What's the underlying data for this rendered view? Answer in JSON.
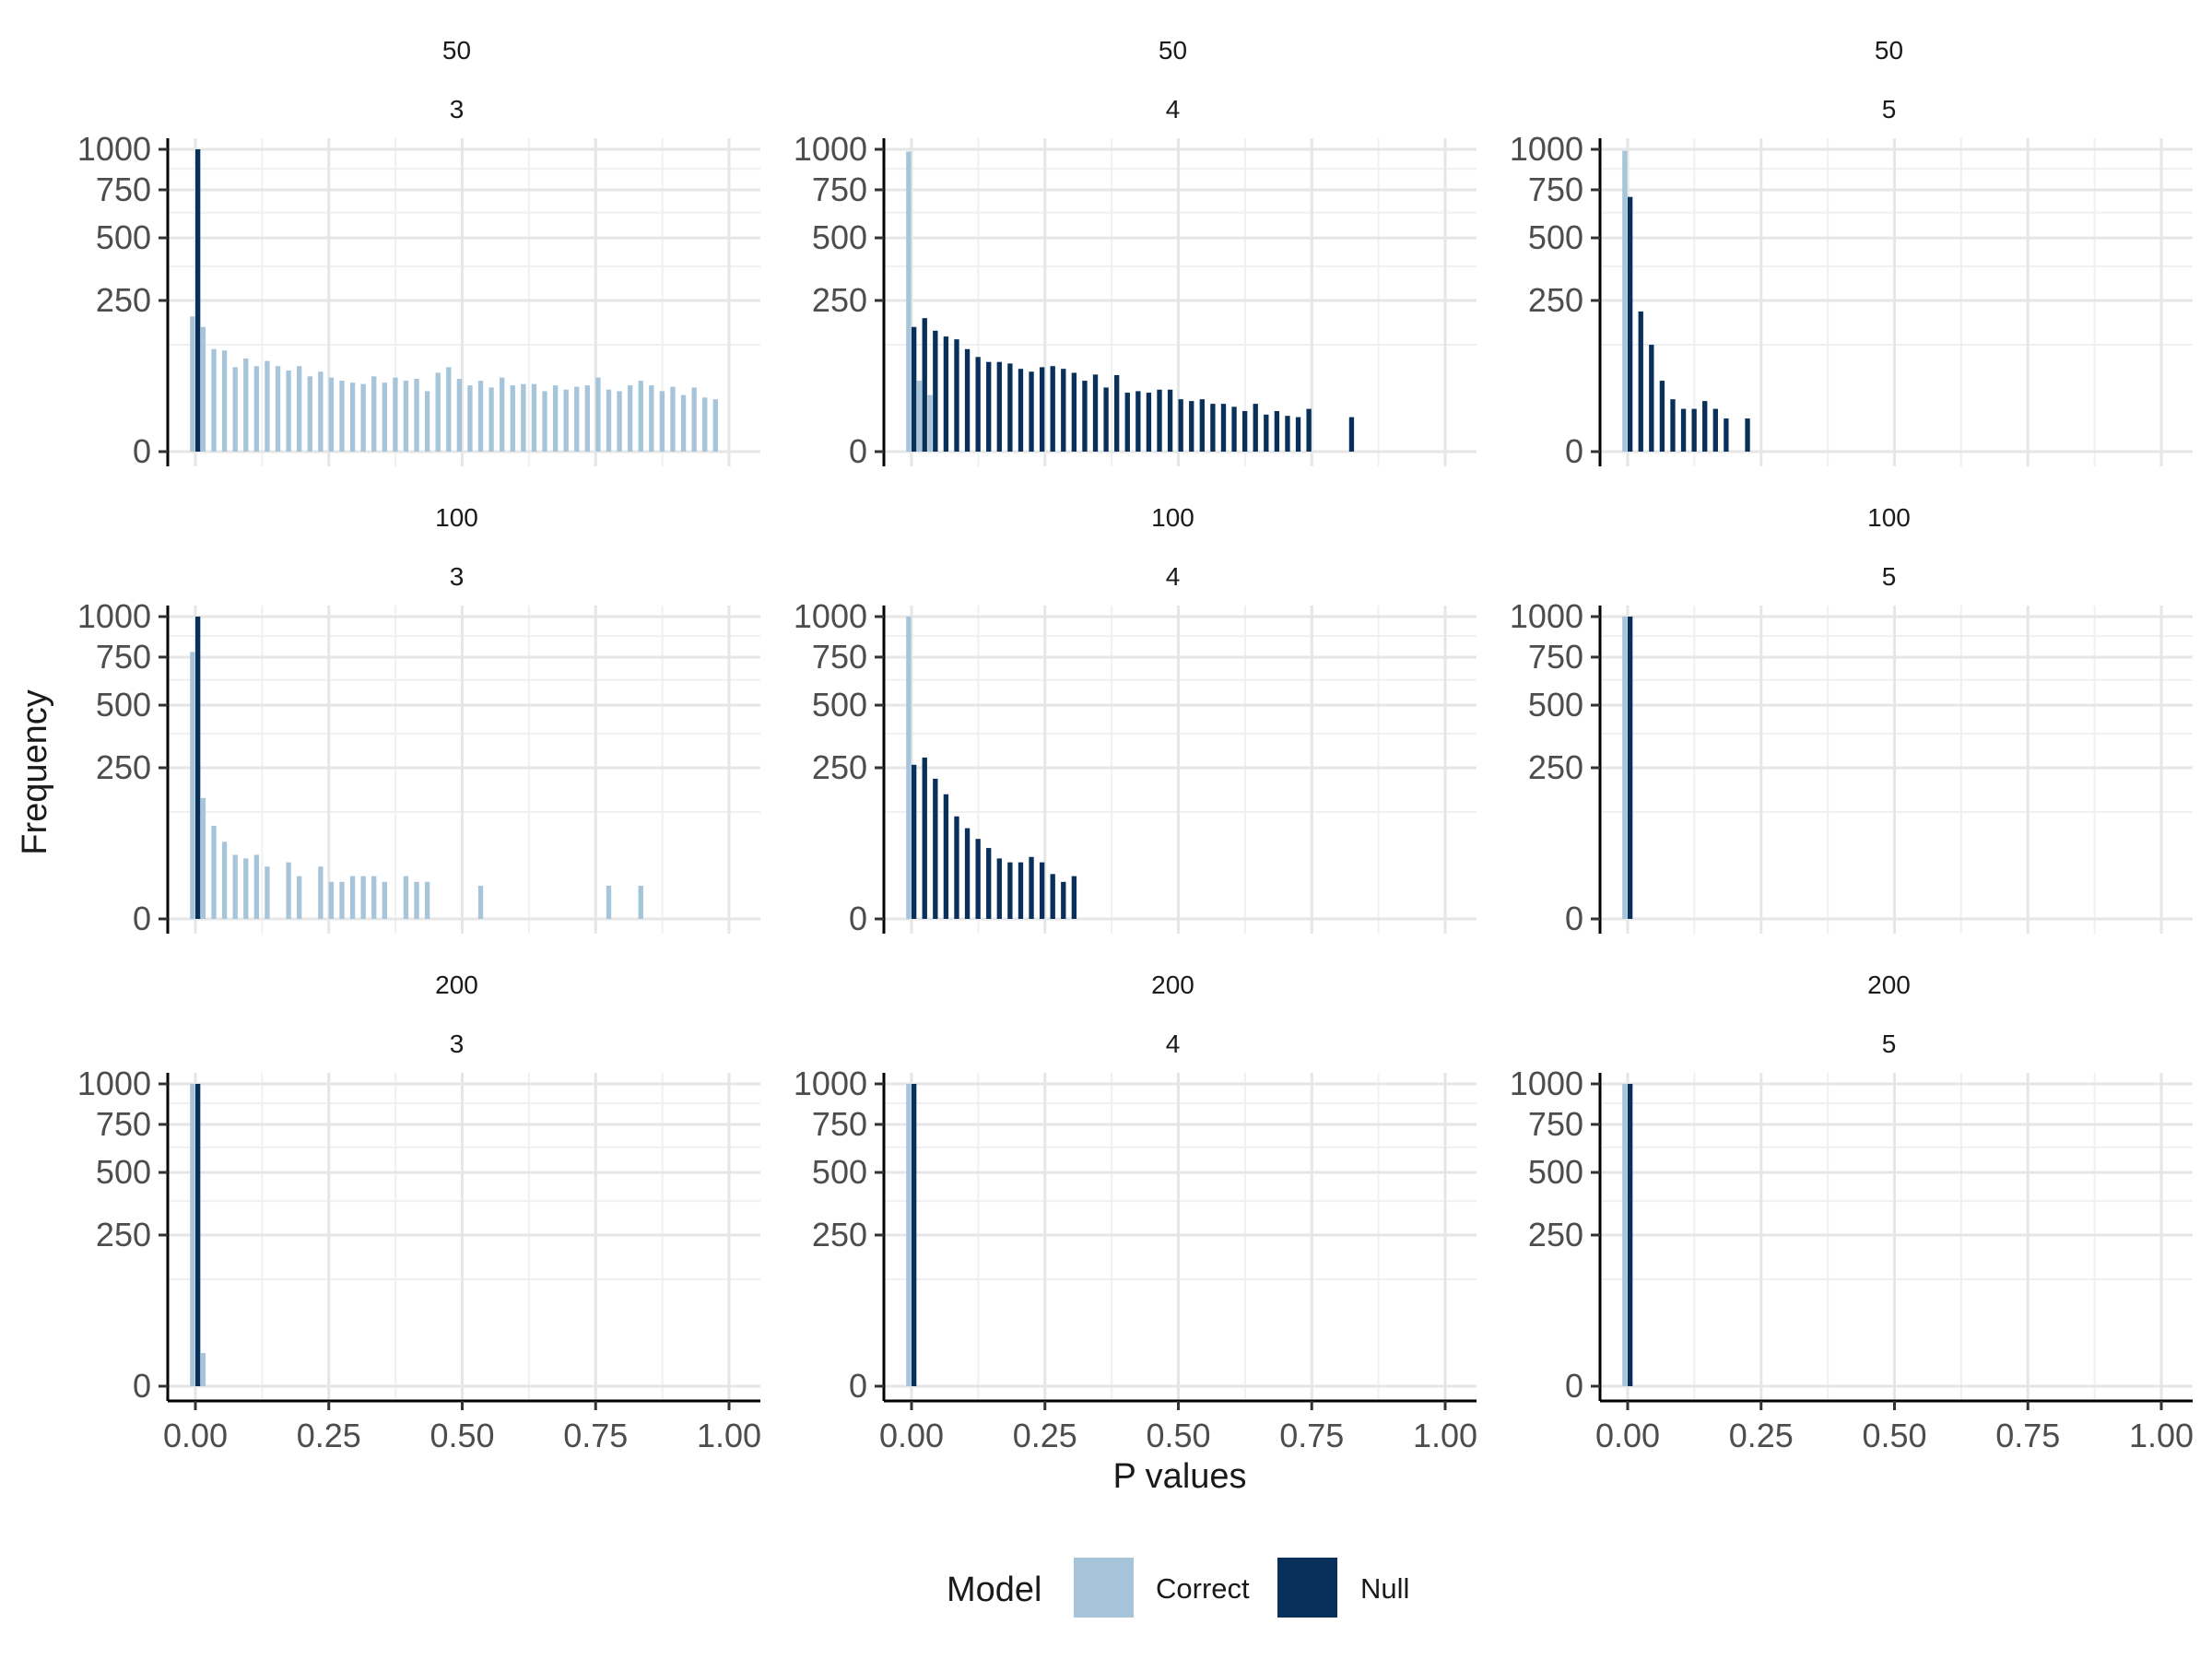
{
  "chart_data": {
    "type": "bar",
    "description_of_layout": "facet grid 3x3",
    "xlabel": "P values",
    "ylabel": "Frequency",
    "x_ticks": [
      "0.00",
      "0.25",
      "0.50",
      "0.75",
      "1.00"
    ],
    "y_ticks": [
      "0",
      "250",
      "500",
      "750",
      "1000"
    ],
    "xlim": [
      0,
      1
    ],
    "ylim": [
      0,
      1000
    ],
    "y_scale": "sqrt",
    "grid": true,
    "legend": {
      "title": "Model",
      "placement": "bottom",
      "entries": [
        {
          "name": "Correct",
          "color": "#a6c5da"
        },
        {
          "name": "Null",
          "color": "#08305a"
        }
      ]
    },
    "facets": [
      {
        "row_label": "50",
        "col_label": "3",
        "correct": [
          [
            0.0,
            200
          ],
          [
            0.02,
            170
          ],
          [
            0.04,
            115
          ],
          [
            0.06,
            112
          ],
          [
            0.08,
            78
          ],
          [
            0.1,
            95
          ],
          [
            0.12,
            80
          ],
          [
            0.14,
            90
          ],
          [
            0.16,
            80
          ],
          [
            0.18,
            72
          ],
          [
            0.2,
            80
          ],
          [
            0.22,
            62
          ],
          [
            0.24,
            70
          ],
          [
            0.26,
            60
          ],
          [
            0.28,
            55
          ],
          [
            0.3,
            52
          ],
          [
            0.32,
            50
          ],
          [
            0.34,
            62
          ],
          [
            0.36,
            52
          ],
          [
            0.38,
            60
          ],
          [
            0.4,
            55
          ],
          [
            0.42,
            58
          ],
          [
            0.44,
            40
          ],
          [
            0.46,
            68
          ],
          [
            0.48,
            78
          ],
          [
            0.5,
            58
          ],
          [
            0.52,
            48
          ],
          [
            0.54,
            55
          ],
          [
            0.56,
            45
          ],
          [
            0.58,
            60
          ],
          [
            0.6,
            48
          ],
          [
            0.62,
            50
          ],
          [
            0.64,
            50
          ],
          [
            0.66,
            40
          ],
          [
            0.68,
            48
          ],
          [
            0.7,
            42
          ],
          [
            0.72,
            46
          ],
          [
            0.74,
            48
          ],
          [
            0.76,
            60
          ],
          [
            0.78,
            42
          ],
          [
            0.8,
            40
          ],
          [
            0.82,
            48
          ],
          [
            0.84,
            55
          ],
          [
            0.86,
            48
          ],
          [
            0.88,
            40
          ],
          [
            0.9,
            46
          ],
          [
            0.92,
            35
          ],
          [
            0.94,
            45
          ],
          [
            0.96,
            32
          ],
          [
            0.98,
            30
          ]
        ],
        "null": [
          [
            0.01,
            1000
          ]
        ]
      },
      {
        "row_label": "50",
        "col_label": "4",
        "correct": [
          [
            0.0,
            985
          ],
          [
            0.02,
            55
          ],
          [
            0.04,
            35
          ]
        ],
        "null": [
          [
            0.01,
            170
          ],
          [
            0.03,
            195
          ],
          [
            0.05,
            160
          ],
          [
            0.07,
            145
          ],
          [
            0.09,
            138
          ],
          [
            0.11,
            115
          ],
          [
            0.13,
            98
          ],
          [
            0.15,
            88
          ],
          [
            0.17,
            88
          ],
          [
            0.19,
            85
          ],
          [
            0.21,
            75
          ],
          [
            0.23,
            70
          ],
          [
            0.25,
            78
          ],
          [
            0.27,
            80
          ],
          [
            0.29,
            75
          ],
          [
            0.31,
            68
          ],
          [
            0.33,
            55
          ],
          [
            0.35,
            65
          ],
          [
            0.37,
            45
          ],
          [
            0.39,
            64
          ],
          [
            0.41,
            38
          ],
          [
            0.43,
            40
          ],
          [
            0.45,
            38
          ],
          [
            0.47,
            42
          ],
          [
            0.49,
            42
          ],
          [
            0.51,
            30
          ],
          [
            0.53,
            28
          ],
          [
            0.55,
            30
          ],
          [
            0.57,
            25
          ],
          [
            0.59,
            25
          ],
          [
            0.61,
            22
          ],
          [
            0.63,
            18
          ],
          [
            0.65,
            25
          ],
          [
            0.67,
            15
          ],
          [
            0.69,
            18
          ],
          [
            0.71,
            14
          ],
          [
            0.73,
            13
          ],
          [
            0.75,
            20
          ],
          [
            0.83,
            13
          ]
        ]
      },
      {
        "row_label": "50",
        "col_label": "5",
        "correct": [
          [
            0.0,
            990
          ]
        ],
        "null": [
          [
            0.01,
            710
          ],
          [
            0.03,
            215
          ],
          [
            0.05,
            125
          ],
          [
            0.07,
            55
          ],
          [
            0.09,
            30
          ],
          [
            0.11,
            20
          ],
          [
            0.13,
            20
          ],
          [
            0.15,
            28
          ],
          [
            0.17,
            20
          ],
          [
            0.19,
            12
          ],
          [
            0.23,
            12
          ]
        ]
      },
      {
        "row_label": "100",
        "col_label": "3",
        "correct": [
          [
            0.0,
            780
          ],
          [
            0.02,
            160
          ],
          [
            0.04,
            95
          ],
          [
            0.06,
            65
          ],
          [
            0.08,
            45
          ],
          [
            0.1,
            40
          ],
          [
            0.12,
            45
          ],
          [
            0.14,
            30
          ],
          [
            0.18,
            35
          ],
          [
            0.2,
            20
          ],
          [
            0.24,
            30
          ],
          [
            0.26,
            15
          ],
          [
            0.28,
            15
          ],
          [
            0.3,
            20
          ],
          [
            0.32,
            20
          ],
          [
            0.34,
            20
          ],
          [
            0.36,
            15
          ],
          [
            0.4,
            20
          ],
          [
            0.42,
            15
          ],
          [
            0.44,
            15
          ],
          [
            0.54,
            12
          ],
          [
            0.78,
            12
          ],
          [
            0.84,
            12
          ]
        ],
        "null": [
          [
            0.01,
            1000
          ]
        ]
      },
      {
        "row_label": "100",
        "col_label": "4",
        "correct": [
          [
            0.0,
            1000
          ]
        ],
        "null": [
          [
            0.01,
            260
          ],
          [
            0.03,
            285
          ],
          [
            0.05,
            215
          ],
          [
            0.07,
            170
          ],
          [
            0.09,
            115
          ],
          [
            0.11,
            90
          ],
          [
            0.13,
            70
          ],
          [
            0.15,
            55
          ],
          [
            0.17,
            40
          ],
          [
            0.19,
            35
          ],
          [
            0.21,
            35
          ],
          [
            0.23,
            42
          ],
          [
            0.25,
            35
          ],
          [
            0.27,
            22
          ],
          [
            0.29,
            15
          ],
          [
            0.31,
            20
          ]
        ]
      },
      {
        "row_label": "100",
        "col_label": "5",
        "correct": [
          [
            0.0,
            1000
          ]
        ],
        "null": [
          [
            0.01,
            1000
          ]
        ]
      },
      {
        "row_label": "200",
        "col_label": "3",
        "correct": [
          [
            0.0,
            1000
          ],
          [
            0.02,
            12
          ]
        ],
        "null": [
          [
            0.01,
            1000
          ]
        ]
      },
      {
        "row_label": "200",
        "col_label": "4",
        "correct": [
          [
            0.0,
            1000
          ]
        ],
        "null": [
          [
            0.01,
            1000
          ]
        ]
      },
      {
        "row_label": "200",
        "col_label": "5",
        "correct": [
          [
            0.0,
            1000
          ]
        ],
        "null": [
          [
            0.01,
            1000
          ]
        ]
      }
    ]
  }
}
